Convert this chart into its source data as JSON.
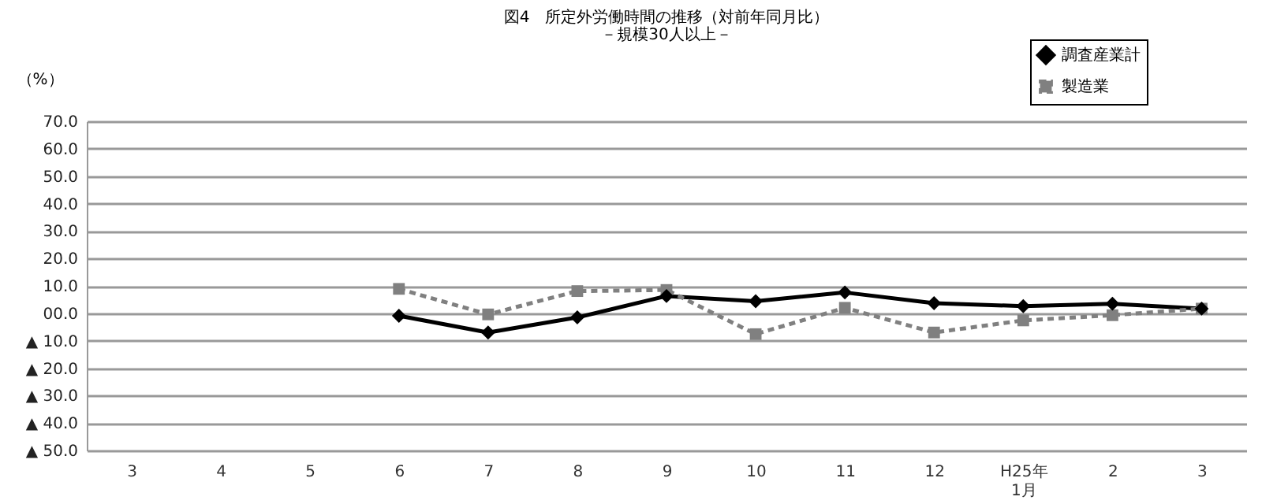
{
  "chart_data": {
    "type": "line",
    "title": "図4　所定外労働時間の推移（対前年同月比）",
    "subtitle": "－規模30人以上－",
    "ylabel": "（%）",
    "categories": [
      "3",
      "4",
      "5",
      "6",
      "7",
      "8",
      "9",
      "10",
      "11",
      "12",
      "H25年\n1月",
      "2",
      "3"
    ],
    "series": [
      {
        "name": "調査産業計",
        "color": "#000000",
        "marker": "diamond",
        "line_style": "solid",
        "values": [
          null,
          null,
          null,
          -0.9,
          -7.0,
          -1.5,
          6.3,
          4.4,
          7.6,
          3.7,
          2.6,
          3.5,
          1.7
        ]
      },
      {
        "name": "製造業",
        "color": "#808080",
        "marker": "square",
        "line_style": "dashed",
        "values": [
          null,
          null,
          null,
          8.9,
          -0.4,
          8.1,
          8.5,
          -7.6,
          2.0,
          -7.0,
          -2.6,
          -0.7,
          1.7
        ]
      }
    ],
    "ylim": [
      -50,
      70
    ],
    "yticks": [
      {
        "value": 70,
        "label": "70.0"
      },
      {
        "value": 60,
        "label": "60.0"
      },
      {
        "value": 50,
        "label": "50.0"
      },
      {
        "value": 40,
        "label": "40.0"
      },
      {
        "value": 30,
        "label": "30.0"
      },
      {
        "value": 20,
        "label": "20.0"
      },
      {
        "value": 10,
        "label": "10.0"
      },
      {
        "value": 0,
        "label": "00.0"
      },
      {
        "value": -10,
        "label": "▲ 10.0"
      },
      {
        "value": -20,
        "label": "▲ 20.0"
      },
      {
        "value": -30,
        "label": "▲ 30.0"
      },
      {
        "value": -40,
        "label": "▲ 40.0"
      },
      {
        "value": -50,
        "label": "▲ 50.0"
      }
    ],
    "grid": "y",
    "legend": "top right"
  }
}
